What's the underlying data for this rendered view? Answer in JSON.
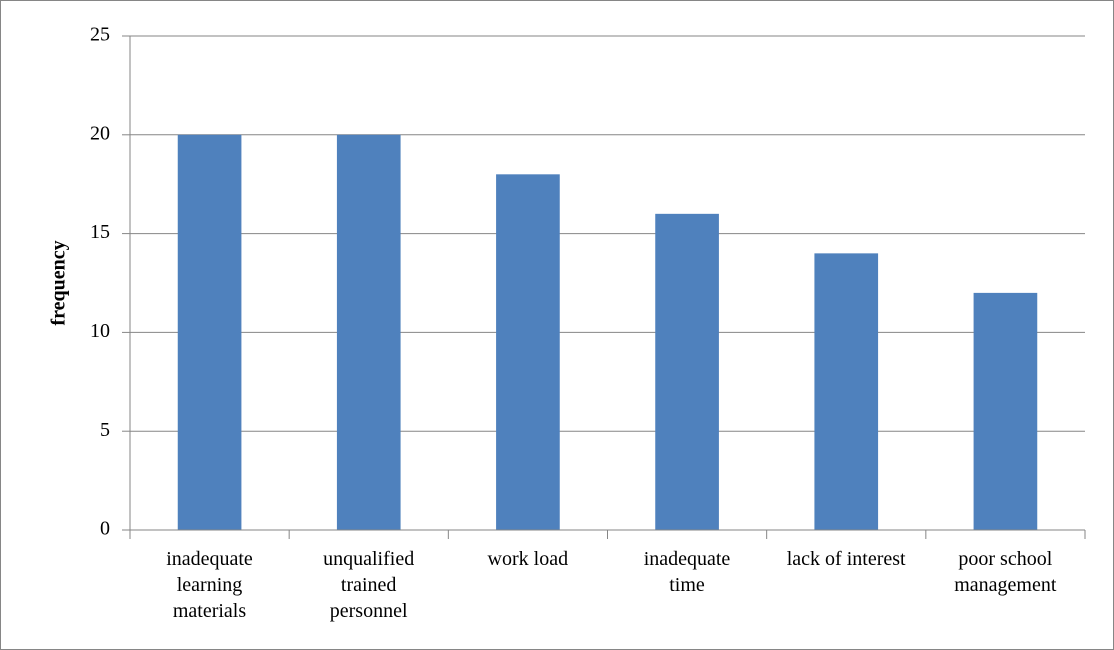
{
  "chart_data": {
    "type": "bar",
    "y_label": "frequency",
    "categories": [
      "inadequate\nlearning\nmaterials",
      "unqualified\ntrained\npersonnel",
      "work load",
      "inadequate\ntime",
      "lack of interest",
      "poor school\nmanagement"
    ],
    "values": [
      20,
      20,
      18,
      16,
      14,
      12
    ],
    "color": "#4f81bd",
    "ylim": [
      0,
      25
    ],
    "yticks": [
      0,
      5,
      10,
      15,
      20,
      25
    ],
    "grid": true
  }
}
